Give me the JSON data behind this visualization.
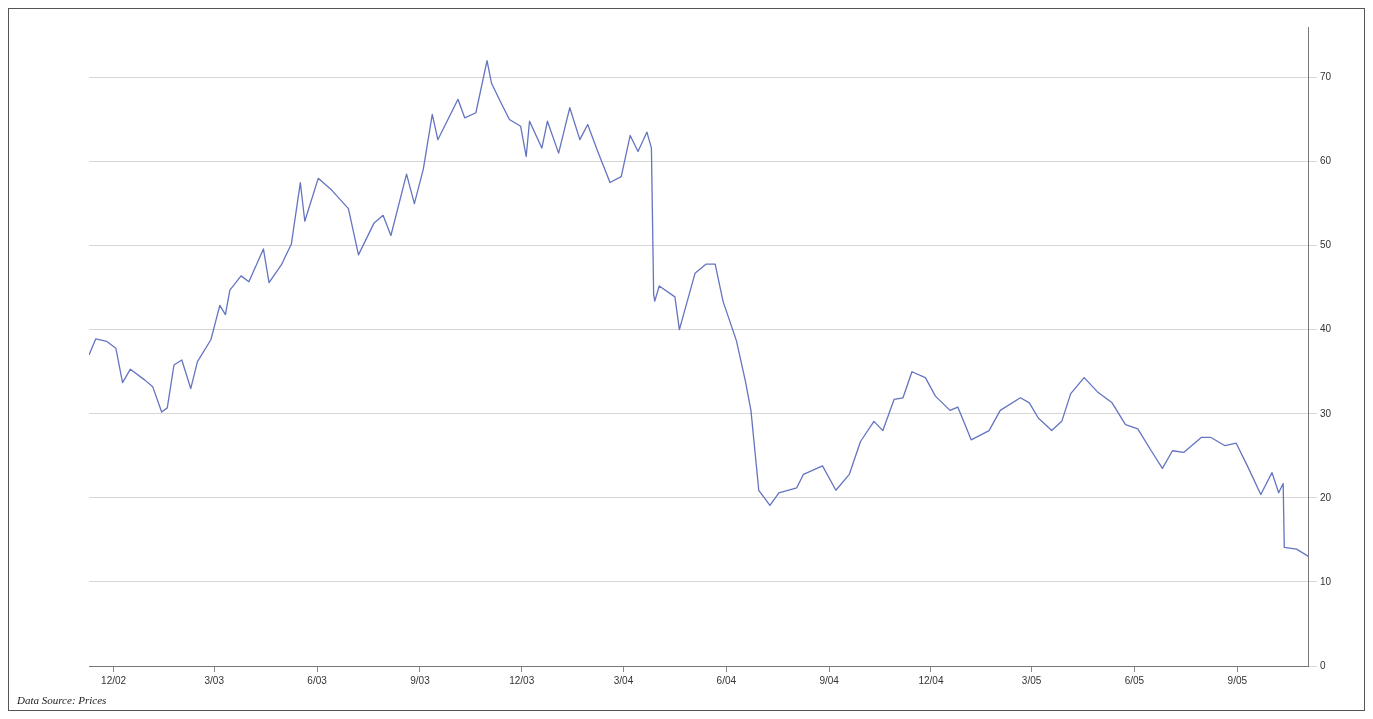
{
  "chart_data": {
    "type": "line",
    "x": [
      "2002-11-09",
      "2002-11-15",
      "2002-11-25",
      "2002-12-03",
      "2002-12-09",
      "2002-12-16",
      "2002-12-29",
      "2003-01-05",
      "2003-01-13",
      "2003-01-18",
      "2003-01-24",
      "2003-01-31",
      "2003-02-08",
      "2003-02-14",
      "2003-02-26",
      "2003-03-06",
      "2003-03-11",
      "2003-03-15",
      "2003-03-25",
      "2003-04-01",
      "2003-04-14",
      "2003-04-19",
      "2003-04-30",
      "2003-05-09",
      "2003-05-17",
      "2003-05-21",
      "2003-06-02",
      "2003-06-14",
      "2003-06-29",
      "2003-07-08",
      "2003-07-22",
      "2003-07-30",
      "2003-08-06",
      "2003-08-20",
      "2003-08-27",
      "2003-09-04",
      "2003-09-12",
      "2003-09-17",
      "2003-10-05",
      "2003-10-11",
      "2003-10-21",
      "2003-10-31",
      "2003-11-04",
      "2003-11-12",
      "2003-11-20",
      "2003-11-30",
      "2003-12-05",
      "2003-12-08",
      "2003-12-19",
      "2003-12-24",
      "2004-01-03",
      "2004-01-13",
      "2004-01-22",
      "2004-01-29",
      "2004-02-07",
      "2004-02-18",
      "2004-02-28",
      "2004-03-07",
      "2004-03-14",
      "2004-03-22",
      "2004-03-26",
      "2004-03-28",
      "2004-03-29",
      "2004-04-02",
      "2004-04-16",
      "2004-04-20",
      "2004-05-04",
      "2004-05-14",
      "2004-05-22",
      "2004-05-29",
      "2004-06-10",
      "2004-06-18",
      "2004-06-23",
      "2004-06-30",
      "2004-07-10",
      "2004-07-18",
      "2004-08-03",
      "2004-08-09",
      "2004-08-26",
      "2004-09-07",
      "2004-09-19",
      "2004-09-29",
      "2004-10-11",
      "2004-10-19",
      "2004-10-29",
      "2004-11-06",
      "2004-11-14",
      "2004-11-26",
      "2004-12-05",
      "2004-12-18",
      "2004-12-25",
      "2005-01-06",
      "2005-01-22",
      "2005-02-01",
      "2005-02-19",
      "2005-02-27",
      "2005-03-07",
      "2005-03-19",
      "2005-03-28",
      "2005-04-05",
      "2005-04-17",
      "2005-04-29",
      "2005-05-12",
      "2005-05-24",
      "2005-06-04",
      "2005-06-16",
      "2005-06-26",
      "2005-07-05",
      "2005-07-15",
      "2005-07-31",
      "2005-08-08",
      "2005-08-21",
      "2005-08-31",
      "2005-09-10",
      "2005-09-22",
      "2005-10-02",
      "2005-10-08",
      "2005-10-12",
      "2005-10-13",
      "2005-10-24",
      "2005-11-04"
    ],
    "series": [
      {
        "color": "#6474c0",
        "values": [
          37.0,
          38.9,
          38.6,
          37.8,
          33.7,
          35.3,
          34.0,
          33.2,
          30.2,
          30.7,
          35.8,
          36.4,
          33.0,
          36.2,
          38.8,
          42.9,
          41.8,
          44.7,
          46.4,
          45.7,
          49.6,
          45.6,
          47.7,
          50.2,
          57.5,
          52.9,
          58.0,
          56.6,
          54.4,
          48.9,
          52.7,
          53.6,
          51.2,
          58.5,
          55.0,
          59.1,
          65.6,
          62.6,
          67.4,
          65.2,
          65.8,
          72.0,
          69.3,
          67.1,
          65.0,
          64.2,
          60.6,
          64.8,
          61.6,
          64.8,
          61.0,
          66.4,
          62.6,
          64.4,
          61.2,
          57.5,
          58.2,
          63.1,
          61.2,
          63.5,
          61.6,
          44.2,
          43.4,
          45.2,
          43.9,
          40.0,
          46.7,
          47.8,
          47.8,
          43.4,
          38.7,
          33.9,
          30.4,
          20.9,
          19.1,
          20.6,
          21.2,
          22.8,
          23.8,
          20.9,
          22.8,
          26.7,
          29.1,
          28.0,
          31.7,
          31.9,
          35.0,
          34.3,
          32.1,
          30.4,
          30.8,
          26.9,
          28.0,
          30.4,
          31.9,
          31.3,
          29.5,
          28.0,
          29.1,
          32.4,
          34.3,
          32.6,
          31.3,
          28.7,
          28.2,
          25.6,
          23.5,
          25.6,
          25.4,
          27.2,
          27.2,
          26.2,
          26.5,
          23.8,
          20.4,
          23.0,
          20.6,
          21.7,
          14.1,
          13.9,
          13.0
        ]
      }
    ],
    "xlim": [
      "2002-11-09",
      "2005-11-04"
    ],
    "xticks": [
      {
        "value": "2002-12-01",
        "label": "12/02"
      },
      {
        "value": "2003-03-01",
        "label": "3/03"
      },
      {
        "value": "2003-06-01",
        "label": "6/03"
      },
      {
        "value": "2003-09-01",
        "label": "9/03"
      },
      {
        "value": "2003-12-01",
        "label": "12/03"
      },
      {
        "value": "2004-03-01",
        "label": "3/04"
      },
      {
        "value": "2004-06-01",
        "label": "6/04"
      },
      {
        "value": "2004-09-01",
        "label": "9/04"
      },
      {
        "value": "2004-12-01",
        "label": "12/04"
      },
      {
        "value": "2005-03-01",
        "label": "3/05"
      },
      {
        "value": "2005-06-01",
        "label": "6/05"
      },
      {
        "value": "2005-09-01",
        "label": "9/05"
      }
    ],
    "ylim": [
      0,
      76
    ],
    "yticks": [
      0,
      10,
      20,
      30,
      40,
      50,
      60,
      70
    ],
    "grid": "y",
    "legend": false,
    "marker": "none",
    "line_style": "solid",
    "annotations": [
      "Data Source: Prices"
    ]
  }
}
